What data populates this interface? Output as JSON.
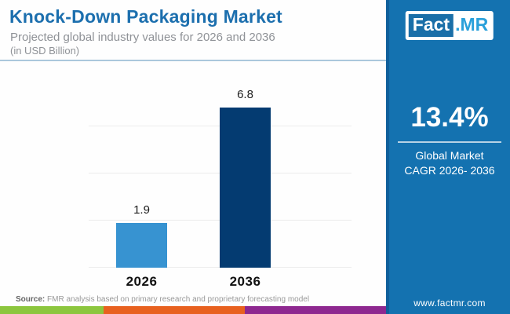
{
  "header": {
    "title": "Knock-Down Packaging Market",
    "subtitle": "Projected global industry values for 2026 and 2036",
    "unit_note": "(in USD Billion)"
  },
  "chart_data": {
    "type": "bar",
    "categories": [
      "2026",
      "2036"
    ],
    "values": [
      1.9,
      6.8
    ],
    "title": "Knock-Down Packaging Market",
    "subtitle": "Projected global industry values for 2026 and 2036",
    "unit": "USD Billion",
    "xlabel": "",
    "ylabel": "",
    "ylim": [
      0,
      7
    ],
    "gridlines": [
      0,
      2,
      4,
      6
    ],
    "grid": true,
    "legend": false,
    "bar_colors": [
      "#3793d1",
      "#043b71"
    ]
  },
  "side_panel": {
    "logo_part1": "Fact",
    "logo_part2": ".MR",
    "cagr_value": "13.4%",
    "cagr_label_line1": "Global Market",
    "cagr_label_line2": "CAGR 2026- 2036",
    "website": "www.factmr.com",
    "background": "#1472b0"
  },
  "footer": {
    "source_label": "Source:",
    "source_text": " FMR analysis based on primary research and proprietary forecasting model",
    "strip_colors": [
      "#8cc63e",
      "#e8611f",
      "#8e2890"
    ]
  }
}
